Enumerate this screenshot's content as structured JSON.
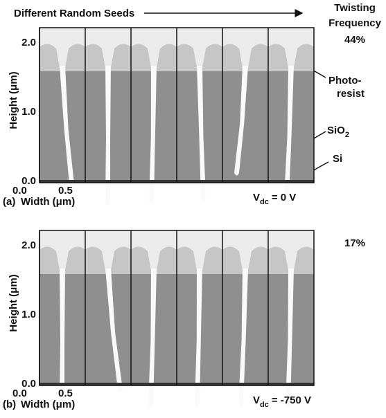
{
  "header": {
    "title": "Different Random Seeds",
    "right_title": [
      "Twisting",
      "Frequency"
    ]
  },
  "annotations": {
    "photoresist": [
      "Photo-",
      "resist"
    ],
    "oxide": {
      "text": "SiO",
      "subscript": "2"
    },
    "substrate": "Si"
  },
  "panels": [
    {
      "label": "(a)",
      "frequency": "44%",
      "y_axis_label": "Height (μm)",
      "x_axis_label": "Width (μm)",
      "y_ticks": [
        "2.0",
        "1.0",
        "0.0"
      ],
      "x_ticks": [
        "0.0",
        "0.5"
      ],
      "voltage": {
        "symbol": "V",
        "subscript": "dc",
        "value": "= 0 V"
      }
    },
    {
      "label": "(b)",
      "frequency": "17%",
      "y_axis_label": "Height (μm)",
      "x_axis_label": "Width (μm)",
      "y_ticks": [
        "2.0",
        "1.0",
        "0.0"
      ],
      "x_ticks": [
        "0.0",
        "0.5"
      ],
      "voltage": {
        "symbol": "V",
        "subscript": "dc",
        "value": "= -750 V"
      }
    }
  ]
}
